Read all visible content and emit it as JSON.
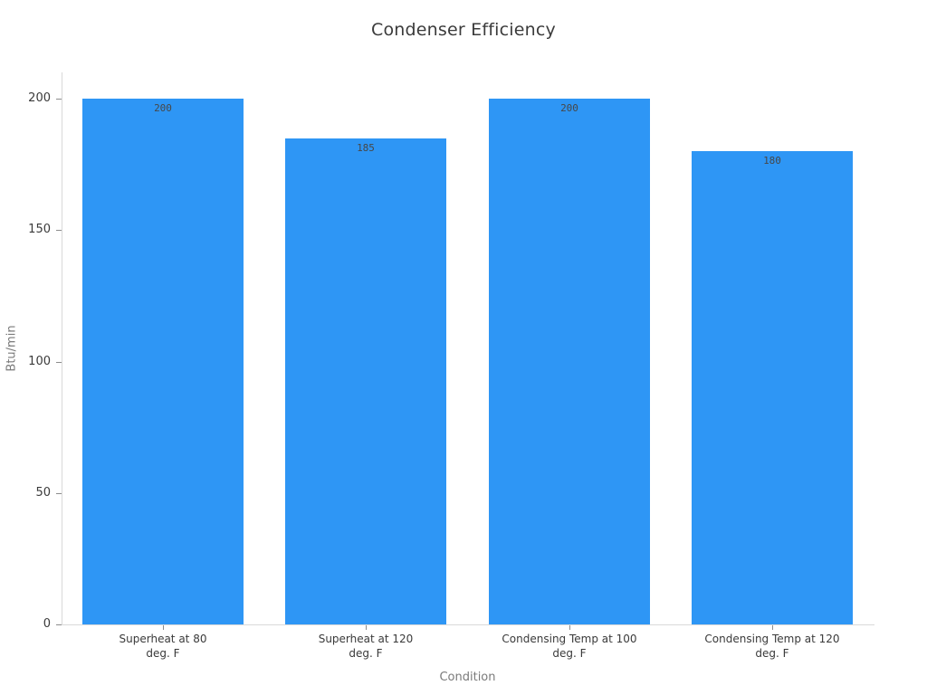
{
  "chart_data": {
    "type": "bar",
    "title": "Condenser Efficiency",
    "xlabel": "Condition",
    "ylabel": "Btu/min",
    "categories": [
      "Superheat at 80\ndeg. F",
      "Superheat at 120\ndeg. F",
      "Condensing Temp at 100\ndeg. F",
      "Condensing Temp at 120\ndeg. F"
    ],
    "values": [
      200,
      185,
      200,
      180
    ],
    "bar_value_labels": [
      "200",
      "185",
      "200",
      "180"
    ],
    "yticks": [
      0,
      50,
      100,
      150,
      200
    ],
    "ylim": [
      0,
      210
    ],
    "grid": false,
    "legend": "none",
    "colors": {
      "bar": "#2e96f5",
      "title_text": "#3b3b3b",
      "tick_label": "#3a3a3a",
      "axis_title": "#7a7a7a",
      "axis_line": "#d9d9d9",
      "tick_mark": "#8c8c8c",
      "value_label": "#474747",
      "background": "#ffffff"
    }
  }
}
